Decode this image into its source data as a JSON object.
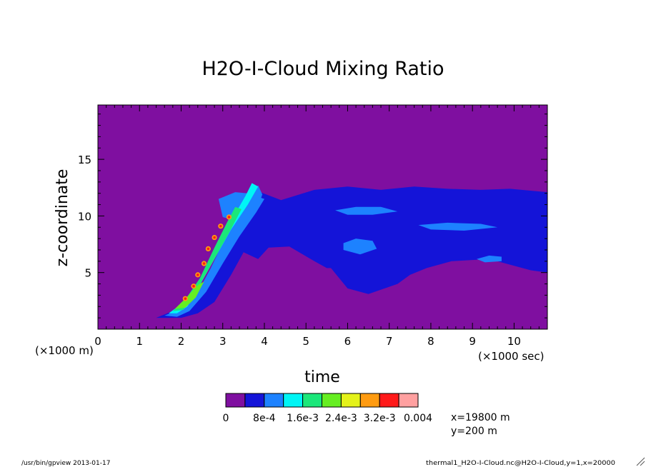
{
  "chart_data": {
    "type": "heatmap",
    "title": "H2O-I-Cloud Mixing Ratio",
    "xlabel": "time",
    "ylabel": "z-coordinate",
    "x_unit_label": "(×1000 sec)",
    "y_unit_label": "(×1000 m)",
    "x_ticks": [
      "0",
      "1",
      "2",
      "3",
      "4",
      "5",
      "6",
      "7",
      "8",
      "9",
      "10"
    ],
    "y_ticks": [
      "5",
      "10",
      "15"
    ],
    "xlim": [
      0,
      10.8
    ],
    "ylim": [
      0,
      19.8
    ],
    "colorbar": {
      "bounds": [
        0,
        0.0004,
        0.0008,
        0.0012,
        0.0016,
        0.002,
        0.0024,
        0.0028,
        0.0032,
        0.0036,
        0.004
      ],
      "colors": [
        "#7f0fa0",
        "#1414d8",
        "#1d82ff",
        "#00f5f5",
        "#1be77a",
        "#66ee22",
        "#e4f21a",
        "#ff9b10",
        "#ff1a1a",
        "#ffa0a0"
      ],
      "labels": [
        "0",
        "8e-4",
        "1.6e-3",
        "2.4e-3",
        "3.2e-3",
        "0.004"
      ]
    },
    "info_lines": [
      "x=19800 m",
      "y=200 m"
    ],
    "footer_left": "/usr/bin/gpview  2013-01-17",
    "footer_right": "thermal1_H2O-I-Cloud.nc@H2O-I-Cloud,y=1,x=20000",
    "regions": [
      {
        "level": 1,
        "points": [
          [
            1.4,
            1.0
          ],
          [
            1.8,
            1.6
          ],
          [
            2.2,
            2.8
          ],
          [
            2.6,
            4.4
          ],
          [
            2.9,
            6.8
          ],
          [
            3.15,
            8.8
          ],
          [
            3.45,
            10.7
          ],
          [
            3.75,
            12.3
          ],
          [
            3.9,
            12.1
          ],
          [
            4.4,
            11.4
          ],
          [
            5.2,
            12.3
          ],
          [
            6.0,
            12.6
          ],
          [
            6.8,
            12.3
          ],
          [
            7.6,
            12.6
          ],
          [
            8.4,
            12.4
          ],
          [
            9.2,
            12.3
          ],
          [
            9.9,
            12.4
          ],
          [
            10.8,
            12.1
          ],
          [
            10.8,
            5.0
          ],
          [
            10.4,
            5.2
          ],
          [
            9.4,
            6.2
          ],
          [
            8.5,
            6.0
          ],
          [
            7.9,
            5.4
          ],
          [
            7.5,
            4.8
          ],
          [
            7.2,
            4.0
          ],
          [
            6.5,
            3.1
          ],
          [
            6.0,
            3.6
          ],
          [
            5.6,
            5.4
          ],
          [
            5.5,
            5.4
          ],
          [
            5.2,
            6.0
          ],
          [
            4.6,
            7.3
          ],
          [
            4.1,
            7.2
          ],
          [
            3.85,
            6.2
          ],
          [
            3.5,
            6.8
          ],
          [
            3.2,
            4.8
          ],
          [
            2.8,
            2.4
          ],
          [
            2.4,
            1.4
          ],
          [
            2.0,
            1.0
          ]
        ]
      },
      {
        "level": 2,
        "points": [
          [
            2.9,
            11.5
          ],
          [
            3.3,
            12.1
          ],
          [
            3.6,
            12.0
          ],
          [
            4.0,
            11.5
          ],
          [
            3.8,
            10.3
          ],
          [
            3.3,
            9.6
          ],
          [
            3.0,
            9.9
          ]
        ]
      },
      {
        "level": 2,
        "points": [
          [
            5.7,
            10.5
          ],
          [
            6.2,
            10.8
          ],
          [
            6.8,
            10.8
          ],
          [
            7.2,
            10.4
          ],
          [
            6.6,
            10.1
          ],
          [
            6.0,
            10.1
          ]
        ]
      },
      {
        "level": 2,
        "points": [
          [
            5.9,
            7.6
          ],
          [
            6.2,
            8.0
          ],
          [
            6.6,
            7.8
          ],
          [
            6.7,
            7.1
          ],
          [
            6.3,
            6.6
          ],
          [
            5.9,
            7.0
          ]
        ]
      },
      {
        "level": 2,
        "points": [
          [
            9.1,
            6.2
          ],
          [
            9.4,
            6.5
          ],
          [
            9.7,
            6.4
          ],
          [
            9.7,
            6.0
          ],
          [
            9.3,
            5.9
          ]
        ]
      },
      {
        "level": 2,
        "points": [
          [
            7.7,
            9.2
          ],
          [
            8.4,
            9.4
          ],
          [
            9.2,
            9.3
          ],
          [
            9.6,
            9.0
          ],
          [
            8.8,
            8.7
          ],
          [
            8.0,
            8.8
          ]
        ]
      },
      {
        "level": 2,
        "points": [
          [
            1.6,
            1.2
          ],
          [
            2.0,
            1.8
          ],
          [
            2.4,
            3.3
          ],
          [
            2.7,
            5.3
          ],
          [
            3.0,
            7.6
          ],
          [
            3.3,
            9.7
          ],
          [
            3.6,
            11.5
          ],
          [
            3.85,
            12.7
          ],
          [
            3.95,
            11.9
          ],
          [
            3.8,
            10.3
          ],
          [
            3.4,
            8.2
          ],
          [
            3.0,
            5.8
          ],
          [
            2.6,
            3.3
          ],
          [
            2.2,
            1.6
          ],
          [
            1.9,
            1.1
          ]
        ]
      },
      {
        "level": 3,
        "points": [
          [
            1.7,
            1.4
          ],
          [
            2.0,
            2.2
          ],
          [
            2.4,
            3.9
          ],
          [
            2.7,
            5.9
          ],
          [
            3.0,
            8.2
          ],
          [
            3.3,
            10.2
          ],
          [
            3.55,
            11.8
          ],
          [
            3.7,
            12.9
          ],
          [
            3.85,
            12.6
          ],
          [
            3.6,
            11.0
          ],
          [
            3.2,
            8.8
          ],
          [
            2.8,
            6.2
          ],
          [
            2.45,
            3.9
          ],
          [
            2.15,
            2.0
          ],
          [
            1.9,
            1.4
          ]
        ]
      },
      {
        "level": 4,
        "points": [
          [
            1.8,
            1.6
          ],
          [
            2.1,
            2.6
          ],
          [
            2.45,
            4.5
          ],
          [
            2.8,
            7.2
          ],
          [
            3.1,
            9.4
          ],
          [
            3.3,
            10.8
          ],
          [
            3.45,
            10.6
          ],
          [
            3.15,
            8.5
          ],
          [
            2.75,
            5.9
          ],
          [
            2.35,
            3.3
          ],
          [
            2.05,
            1.7
          ]
        ]
      },
      {
        "level": 5,
        "points": [
          [
            1.85,
            1.8
          ],
          [
            2.1,
            2.7
          ],
          [
            2.4,
            3.9
          ],
          [
            2.55,
            4.2
          ],
          [
            2.35,
            2.8
          ],
          [
            2.1,
            1.9
          ]
        ]
      }
    ],
    "hotspots": [
      [
        2.1,
        2.7
      ],
      [
        2.3,
        3.8
      ],
      [
        2.4,
        4.8
      ],
      [
        2.55,
        5.8
      ],
      [
        2.65,
        7.1
      ],
      [
        2.8,
        8.1
      ],
      [
        2.95,
        9.1
      ],
      [
        3.15,
        9.9
      ]
    ]
  }
}
